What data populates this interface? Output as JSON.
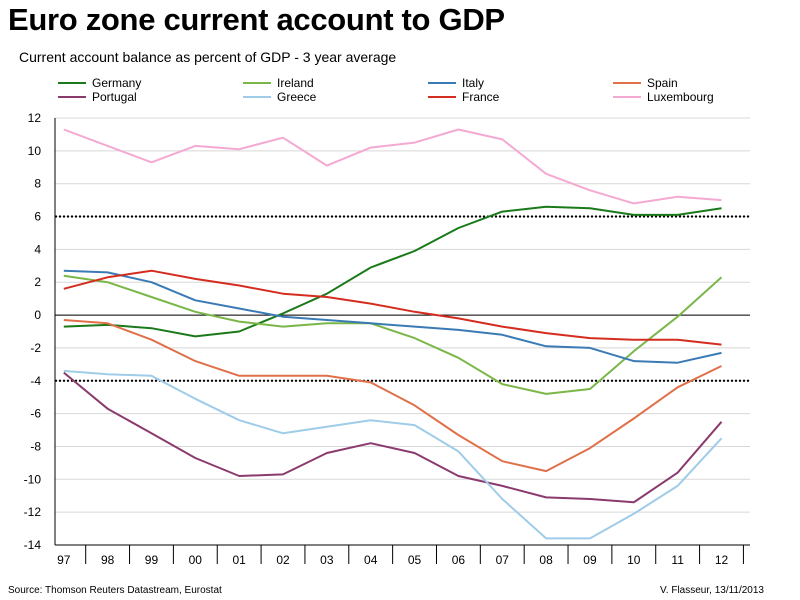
{
  "header": {
    "title": "Euro zone current account to GDP",
    "subtitle": "Current account balance as percent of GDP - 3 year average"
  },
  "footer": {
    "source": "Source: Thomson Reuters Datastream, Eurostat",
    "credit": "V. Flasseur, 13/11/2013"
  },
  "chart_data": {
    "type": "line",
    "title": "Euro zone current account to GDP",
    "subtitle": "Current account balance as percent of GDP - 3 year average",
    "xlabel": "",
    "ylabel": "",
    "x_ticks": [
      "97",
      "98",
      "99",
      "00",
      "01",
      "02",
      "03",
      "04",
      "05",
      "06",
      "07",
      "08",
      "09",
      "10",
      "11",
      "12"
    ],
    "x": [
      1997,
      1998,
      1999,
      2000,
      2001,
      2002,
      2003,
      2004,
      2005,
      2006,
      2007,
      2008,
      2009,
      2010,
      2011,
      2012
    ],
    "xlim": [
      1996.8,
      2012.65
    ],
    "ylim": [
      -14,
      12
    ],
    "y_ticks": [
      12,
      10,
      8,
      6,
      4,
      2,
      0,
      -2,
      -4,
      -6,
      -8,
      -10,
      -12,
      -14
    ],
    "grid": true,
    "legend_position": "top",
    "reference_lines": [
      {
        "y": 6,
        "style": "dotted"
      },
      {
        "y": -4,
        "style": "dotted"
      },
      {
        "y": 0,
        "style": "solid"
      }
    ],
    "series": [
      {
        "name": "Germany",
        "color": "#1a7a1a",
        "values": [
          -0.7,
          -0.6,
          -0.8,
          -1.3,
          -1.0,
          0.1,
          1.3,
          2.9,
          3.9,
          5.3,
          6.3,
          6.6,
          6.5,
          6.1,
          6.1,
          6.5
        ]
      },
      {
        "name": "Ireland",
        "color": "#7ab648",
        "values": [
          2.4,
          2.0,
          1.1,
          0.2,
          -0.4,
          -0.7,
          -0.5,
          -0.5,
          -1.4,
          -2.6,
          -4.2,
          -4.8,
          -4.5,
          -2.2,
          -0.1,
          2.3
        ]
      },
      {
        "name": "Italy",
        "color": "#3a7bb5",
        "values": [
          2.7,
          2.6,
          2.0,
          0.9,
          0.4,
          -0.1,
          -0.3,
          -0.5,
          -0.7,
          -0.9,
          -1.2,
          -1.9,
          -2.0,
          -2.8,
          -2.9,
          -2.3
        ]
      },
      {
        "name": "Spain",
        "color": "#e0704a",
        "values": [
          -0.3,
          -0.5,
          -1.5,
          -2.8,
          -3.7,
          -3.7,
          -3.7,
          -4.1,
          -5.5,
          -7.3,
          -8.9,
          -9.5,
          -8.1,
          -6.3,
          -4.4,
          -3.1
        ]
      },
      {
        "name": "Portugal",
        "color": "#8b3a6e",
        "values": [
          -3.5,
          -5.7,
          -7.2,
          -8.7,
          -9.8,
          -9.7,
          -8.4,
          -7.8,
          -8.4,
          -9.8,
          -10.4,
          -11.1,
          -11.2,
          -11.4,
          -9.6,
          -6.5
        ]
      },
      {
        "name": "Greece",
        "color": "#9fcce8",
        "values": [
          -3.4,
          -3.6,
          -3.7,
          -5.1,
          -6.4,
          -7.2,
          -6.8,
          -6.4,
          -6.7,
          -8.3,
          -11.2,
          -13.6,
          -13.6,
          -12.1,
          -10.4,
          -7.5
        ]
      },
      {
        "name": "France",
        "color": "#d42d20",
        "values": [
          1.6,
          2.3,
          2.7,
          2.2,
          1.8,
          1.3,
          1.1,
          0.7,
          0.2,
          -0.2,
          -0.7,
          -1.1,
          -1.4,
          -1.5,
          -1.5,
          -1.8
        ]
      },
      {
        "name": "Luxembourg",
        "color": "#f4a9d2",
        "values": [
          11.3,
          10.3,
          9.3,
          10.3,
          10.1,
          10.8,
          9.1,
          10.2,
          10.5,
          11.3,
          10.7,
          8.6,
          7.6,
          6.8,
          7.2,
          7.0
        ]
      }
    ]
  }
}
